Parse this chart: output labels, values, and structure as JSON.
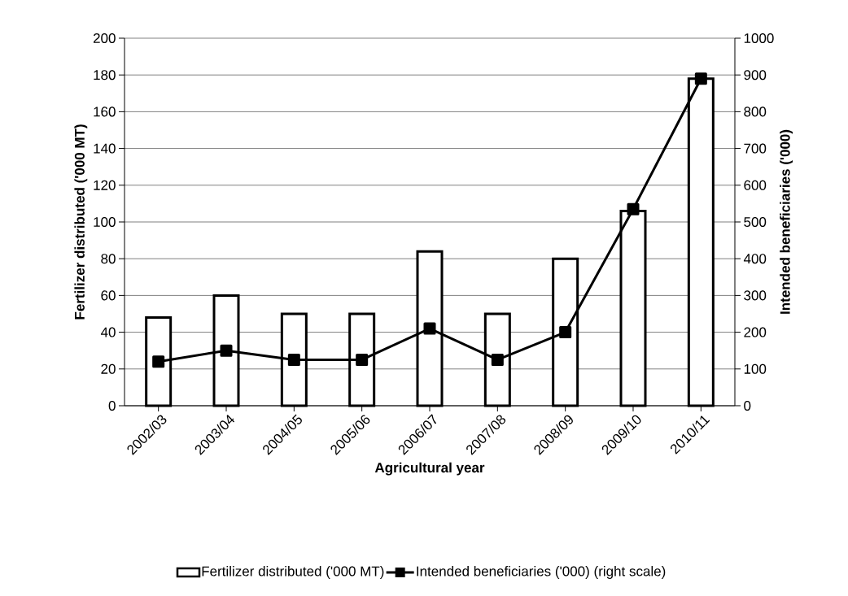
{
  "chart_data": {
    "type": "bar",
    "xlabel": "Agricultural year",
    "ylabel": "Fertilizer distributed ('000 MT)",
    "y2label": "Intended beneficiaries ('000)",
    "categories": [
      "2002/03",
      "2003/04",
      "2004/05",
      "2005/06",
      "2006/07",
      "2007/08",
      "2008/09",
      "2009/10",
      "2010/11"
    ],
    "series": [
      {
        "name": "Fertilizer distributed ('000 MT)",
        "color": "#ffffff",
        "values": [
          48,
          60,
          50,
          50,
          84,
          50,
          80,
          106,
          178
        ]
      },
      {
        "name": "Intended beneficiaries ('000) (right scale)",
        "type": "line",
        "axis": "y2",
        "color": "#000000",
        "values": [
          120,
          150,
          125,
          125,
          210,
          125,
          200,
          535,
          890
        ]
      }
    ],
    "ylim": [
      0,
      200
    ],
    "yticks": [
      0,
      20,
      40,
      60,
      80,
      100,
      120,
      140,
      160,
      180,
      200
    ],
    "y2lim": [
      0,
      1000
    ],
    "y2ticks": [
      0,
      100,
      200,
      300,
      400,
      500,
      600,
      700,
      800,
      900,
      1000
    ],
    "grid": "y",
    "legend": "bottom",
    "marker": "square",
    "line_style": "solid"
  }
}
